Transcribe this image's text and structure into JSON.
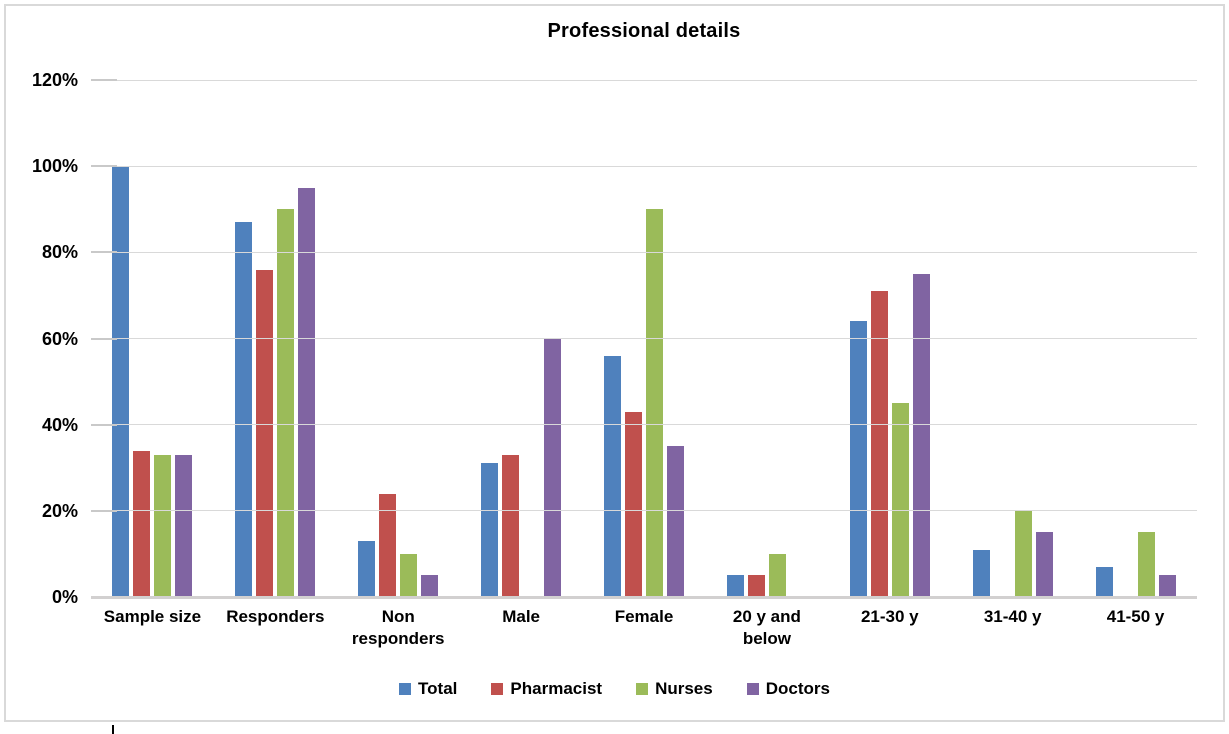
{
  "title": "Professional details",
  "chart_data": {
    "type": "bar",
    "title": "Professional details",
    "categories": [
      "Sample size",
      "Responders",
      "Non\nresponders",
      "Male",
      "Female",
      "20 y   and\nbelow",
      "21-30 y",
      "31-40 y",
      "41-50 y"
    ],
    "series": [
      {
        "name": "Total",
        "color": "#4F81BD",
        "values": [
          100,
          87,
          13,
          31,
          56,
          5,
          64,
          11,
          7
        ]
      },
      {
        "name": "Pharmacist",
        "color": "#C0504D",
        "values": [
          34,
          76,
          24,
          33,
          43,
          5,
          71,
          0,
          0
        ]
      },
      {
        "name": "Nurses",
        "color": "#9BBB59",
        "values": [
          33,
          90,
          10,
          0,
          90,
          10,
          45,
          20,
          15
        ]
      },
      {
        "name": "Doctors",
        "color": "#8064A2",
        "values": [
          33,
          95,
          5,
          60,
          35,
          0,
          75,
          15,
          5
        ]
      }
    ],
    "y_axis": {
      "min": 0,
      "max": 120,
      "step": 20,
      "tick_labels": [
        "0%",
        "20%",
        "40%",
        "60%",
        "80%",
        "100%",
        "120%"
      ],
      "unit": "%"
    },
    "xlabel": "",
    "ylabel": "",
    "grid": true,
    "legend_position": "bottom"
  },
  "colors": {
    "gridline": "#d9d9d9",
    "axis_line": "#d2d0d0",
    "frame_border": "#d9d9d9",
    "text": "#000000"
  }
}
